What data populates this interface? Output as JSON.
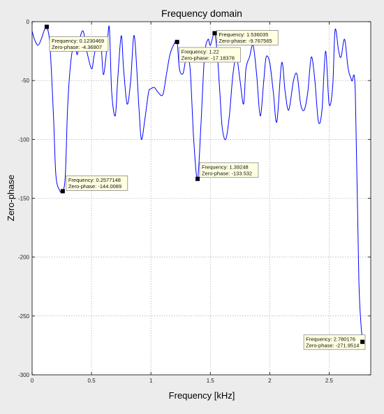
{
  "chart_data": {
    "type": "line",
    "title": "Frequency domain",
    "xlabel": "Frequency [kHz]",
    "ylabel": "Zero-phase",
    "xlim": [
      0,
      2.85
    ],
    "ylim": [
      -300,
      0
    ],
    "xticks": [
      0,
      0.5,
      1,
      1.5,
      2,
      2.5
    ],
    "xtick_labels": [
      "0",
      "0.5",
      "1",
      "1.5",
      "2",
      "2.5"
    ],
    "yticks": [
      0,
      -50,
      -100,
      -150,
      -200,
      -250,
      -300
    ],
    "ytick_labels": [
      "0",
      "-50",
      "-100",
      "-150",
      "-200",
      "-250",
      "-300"
    ],
    "grid": true,
    "series": [
      {
        "color": "#0000ff",
        "x": [
          0,
          0.02,
          0.05,
          0.08,
          0.1,
          0.123,
          0.15,
          0.18,
          0.2,
          0.23,
          0.258,
          0.28,
          0.3,
          0.33,
          0.36,
          0.38,
          0.4,
          0.43,
          0.46,
          0.5,
          0.52,
          0.55,
          0.58,
          0.6,
          0.63,
          0.65,
          0.67,
          0.7,
          0.72,
          0.75,
          0.77,
          0.8,
          0.83,
          0.86,
          0.9,
          0.92,
          0.95,
          0.98,
          1.0,
          1.03,
          1.06,
          1.1,
          1.13,
          1.16,
          1.19,
          1.22,
          1.24,
          1.27,
          1.3,
          1.33,
          1.36,
          1.392,
          1.42,
          1.45,
          1.48,
          1.5,
          1.536,
          1.56,
          1.58,
          1.6,
          1.63,
          1.66,
          1.69,
          1.72,
          1.75,
          1.78,
          1.8,
          1.83,
          1.86,
          1.89,
          1.92,
          1.95,
          1.97,
          2.0,
          2.03,
          2.06,
          2.1,
          2.13,
          2.16,
          2.2,
          2.23,
          2.26,
          2.29,
          2.32,
          2.35,
          2.38,
          2.41,
          2.44,
          2.47,
          2.5,
          2.53,
          2.55,
          2.58,
          2.6,
          2.63,
          2.66,
          2.69,
          2.72,
          2.75,
          2.78
        ],
        "y": [
          -8,
          -15,
          -20,
          -14,
          -8,
          -4.4,
          -20,
          -80,
          -130,
          -143,
          -144,
          -130,
          -70,
          -30,
          -20,
          -28,
          -15,
          -8,
          -25,
          -40,
          -30,
          -15,
          -20,
          -45,
          -22,
          -5,
          -60,
          -80,
          -50,
          -12,
          -40,
          -70,
          -50,
          -12,
          -75,
          -100,
          -82,
          -60,
          -57,
          -56,
          -60,
          -62,
          -45,
          -28,
          -20,
          -17.2,
          -40,
          -44,
          -30,
          -40,
          -100,
          -133.5,
          -90,
          -30,
          -15,
          -20,
          -9.8,
          -30,
          -60,
          -90,
          -100,
          -80,
          -45,
          -30,
          -50,
          -70,
          -40,
          -30,
          -20,
          -45,
          -80,
          -50,
          -30,
          -35,
          -60,
          -85,
          -35,
          -60,
          -75,
          -50,
          -45,
          -70,
          -75,
          -60,
          -30,
          -50,
          -85,
          -75,
          -25,
          -70,
          -55,
          -7,
          -25,
          -30,
          -15,
          -40,
          -50,
          -60,
          -220,
          -272
        ]
      }
    ],
    "annotations": [
      {
        "x": 0.1230469,
        "y": -4.36907,
        "lines": [
          "Frequency: 0.1230469",
          "Zero-phase: -4.36907"
        ]
      },
      {
        "x": 0.2577148,
        "y": -144.0089,
        "lines": [
          "Frequency: 0.2577148",
          "Zero-phase: -144.0089"
        ]
      },
      {
        "x": 1.22,
        "y": -17.18378,
        "lines": [
          "Frequency: 1.22",
          "Zero-phase: -17.18378"
        ]
      },
      {
        "x": 1.536035,
        "y": -9.767565,
        "lines": [
          "Frequency: 1.536035",
          "Zero-phase: -9.767565"
        ]
      },
      {
        "x": 1.39248,
        "y": -133.532,
        "lines": [
          "Frequency: 1.39248",
          "Zero-phase: -133.532"
        ]
      },
      {
        "x": 2.780176,
        "y": -271.9514,
        "lines": [
          "Frequency: 2.780176",
          "Zero-phase: -271.9514"
        ]
      }
    ]
  }
}
